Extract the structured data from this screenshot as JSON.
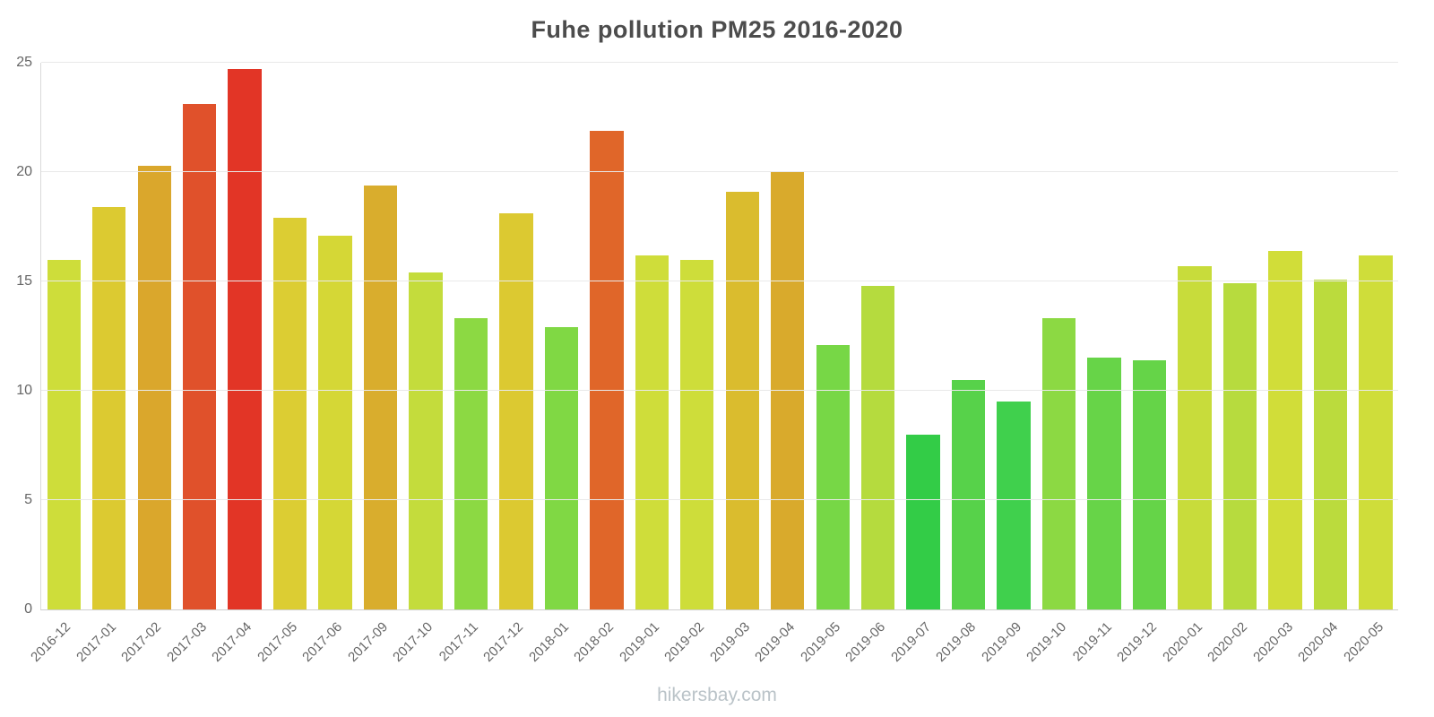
{
  "chart_data": {
    "type": "bar",
    "title": "Fuhe pollution PM25 2016-2020",
    "categories": [
      "2016-12",
      "2017-01",
      "2017-02",
      "2017-03",
      "2017-04",
      "2017-05",
      "2017-06",
      "2017-09",
      "2017-10",
      "2017-11",
      "2017-12",
      "2018-01",
      "2018-02",
      "2019-01",
      "2019-02",
      "2019-03",
      "2019-04",
      "2019-05",
      "2019-06",
      "2019-07",
      "2019-08",
      "2019-09",
      "2019-10",
      "2019-11",
      "2019-12",
      "2020-01",
      "2020-02",
      "2020-03",
      "2020-04",
      "2020-05"
    ],
    "values": [
      16.0,
      18.4,
      20.3,
      23.1,
      24.7,
      17.9,
      17.1,
      19.4,
      15.4,
      13.3,
      18.1,
      12.9,
      21.9,
      16.2,
      16.0,
      19.1,
      20.0,
      12.1,
      14.8,
      8.0,
      10.5,
      9.5,
      13.3,
      11.5,
      11.4,
      15.7,
      14.9,
      16.4,
      15.1,
      16.2
    ],
    "colors": [
      "#cedd3a",
      "#dcca31",
      "#daa72c",
      "#e0512b",
      "#e23526",
      "#dccd33",
      "#d5d736",
      "#d9ad2d",
      "#c4dc3c",
      "#8cd943",
      "#dcc931",
      "#80d844",
      "#e06629",
      "#cfdd3a",
      "#cedd3a",
      "#dabc2e",
      "#d9aa2c",
      "#77d746",
      "#b5db3e",
      "#33cc47",
      "#57d24a",
      "#40d04d",
      "#8cd943",
      "#67d448",
      "#65d448",
      "#c8dc3b",
      "#b7db3e",
      "#d1dd39",
      "#bbdb3d",
      "#cfdd3a"
    ],
    "xlabel": "",
    "ylabel": "",
    "ylim": [
      0,
      25
    ],
    "yticks": [
      0,
      5,
      10,
      15,
      20,
      25
    ],
    "grid": true,
    "legend": false
  },
  "watermark": "hikersbay.com"
}
